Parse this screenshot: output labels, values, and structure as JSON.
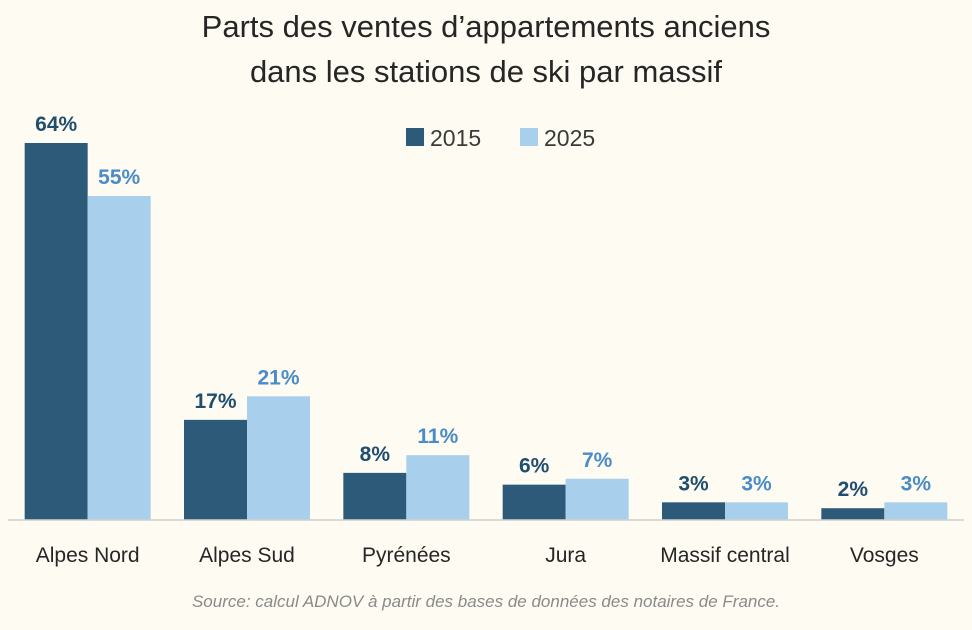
{
  "chart_data": {
    "type": "bar",
    "title": "Parts des ventes d’appartements anciens",
    "subtitle": "dans les stations de ski par massif",
    "categories": [
      "Alpes Nord",
      "Alpes Sud",
      "Pyrénées",
      "Jura",
      "Massif central",
      "Vosges"
    ],
    "series": [
      {
        "name": "2015",
        "values": [
          64,
          17,
          8,
          6,
          3,
          2
        ],
        "labels": [
          "64%",
          "17%",
          "8%",
          "6%",
          "3%",
          "2%"
        ],
        "color": "#2e5a7a",
        "label_color": "#1f4e6e"
      },
      {
        "name": "2025",
        "values": [
          55,
          21,
          11,
          7,
          3,
          3
        ],
        "labels": [
          "55%",
          "21%",
          "11%",
          "7%",
          "3%",
          "3%"
        ],
        "color": "#a8d0ec",
        "label_color": "#4a8cc7"
      }
    ],
    "ylim": [
      0,
      64
    ],
    "grid": false,
    "legend": "top",
    "source": "Source: calcul ADNOV à partir des bases de données des notaires de France."
  }
}
